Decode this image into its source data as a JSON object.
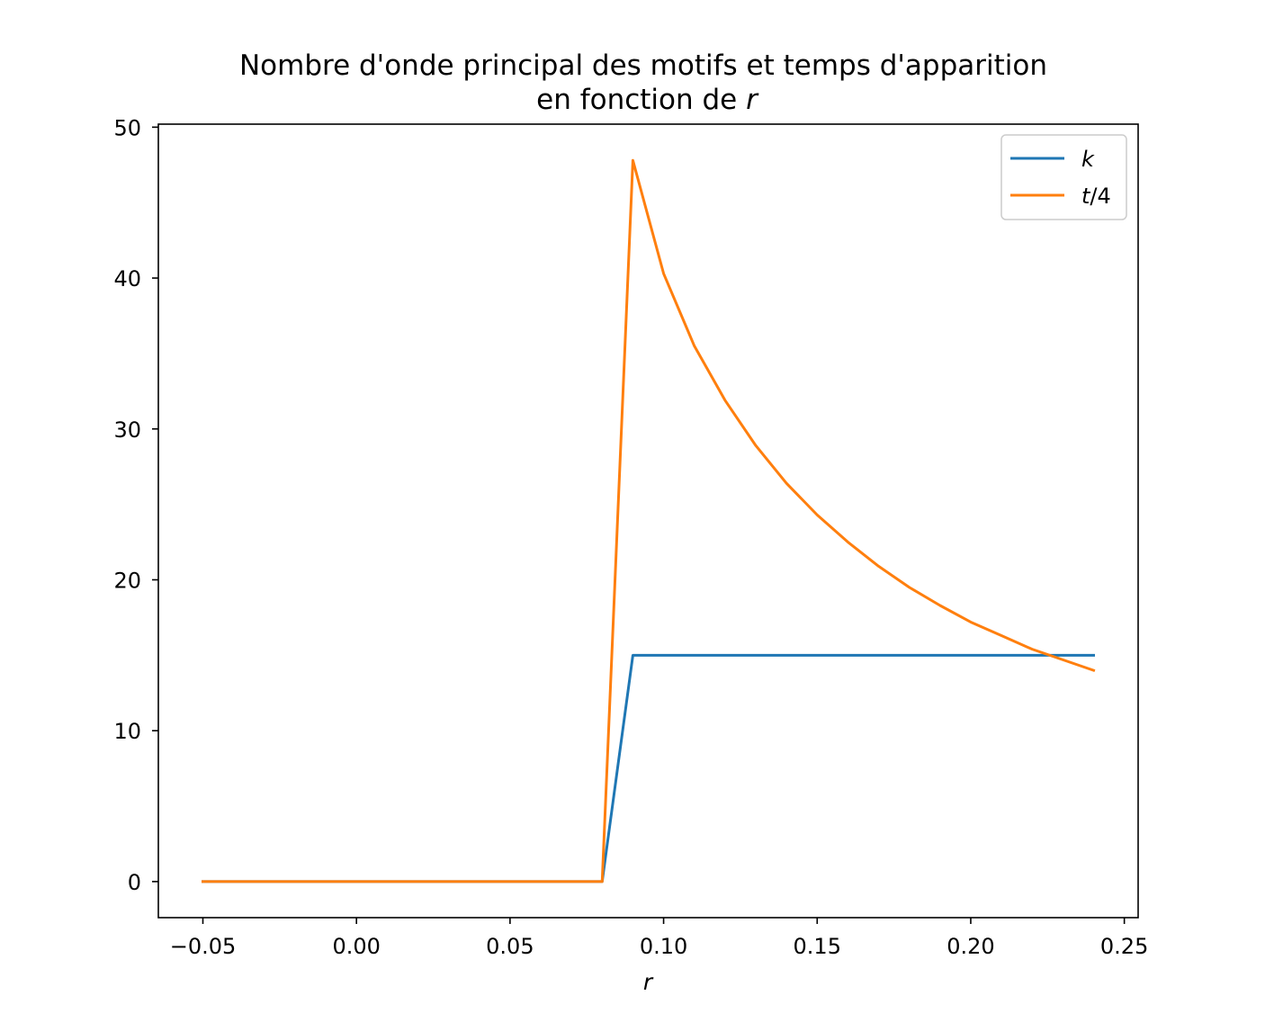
{
  "chart_data": {
    "type": "line",
    "title": "Nombre d'onde principal des motifs et temps d'apparition",
    "subtitle_prefix": "en fonction de ",
    "subtitle_var": "r",
    "xlabel": "r",
    "ylabel": "",
    "xlim": [
      -0.0645,
      0.2545
    ],
    "ylim": [
      -2.39,
      50.2
    ],
    "xticks": [
      -0.05,
      0.0,
      0.05,
      0.1,
      0.15,
      0.2,
      0.25
    ],
    "xtick_labels": [
      "−0.05",
      "0.00",
      "0.05",
      "0.10",
      "0.15",
      "0.20",
      "0.25"
    ],
    "yticks": [
      0,
      10,
      20,
      30,
      40,
      50
    ],
    "ytick_labels": [
      "0",
      "10",
      "20",
      "30",
      "40",
      "50"
    ],
    "grid": false,
    "legend_position": "top-right",
    "x": [
      -0.05,
      -0.04,
      -0.03,
      -0.02,
      -0.01,
      0.0,
      0.01,
      0.02,
      0.03,
      0.04,
      0.05,
      0.06,
      0.07,
      0.08,
      0.09,
      0.1,
      0.11,
      0.12,
      0.13,
      0.14,
      0.15,
      0.16,
      0.17,
      0.18,
      0.19,
      0.2,
      0.21,
      0.22,
      0.23,
      0.24
    ],
    "series": [
      {
        "name": "k",
        "color": "#1f77b4",
        "values": [
          0,
          0,
          0,
          0,
          0,
          0,
          0,
          0,
          0,
          0,
          0,
          0,
          0,
          0,
          15,
          15,
          15,
          15,
          15,
          15,
          15,
          15,
          15,
          15,
          15,
          15,
          15,
          15,
          15,
          15
        ]
      },
      {
        "name": "t/4",
        "color": "#ff7f0e",
        "values": [
          0,
          0,
          0,
          0,
          0,
          0,
          0,
          0,
          0,
          0,
          0,
          0,
          0,
          0,
          47.8,
          40.3,
          35.5,
          31.9,
          28.9,
          26.4,
          24.3,
          22.5,
          20.9,
          19.5,
          18.3,
          17.2,
          16.3,
          15.4,
          14.7,
          14.0
        ]
      }
    ],
    "legend_labels": [
      {
        "italic": "k",
        "rest": ""
      },
      {
        "italic": "t",
        "rest": "/4"
      }
    ]
  }
}
